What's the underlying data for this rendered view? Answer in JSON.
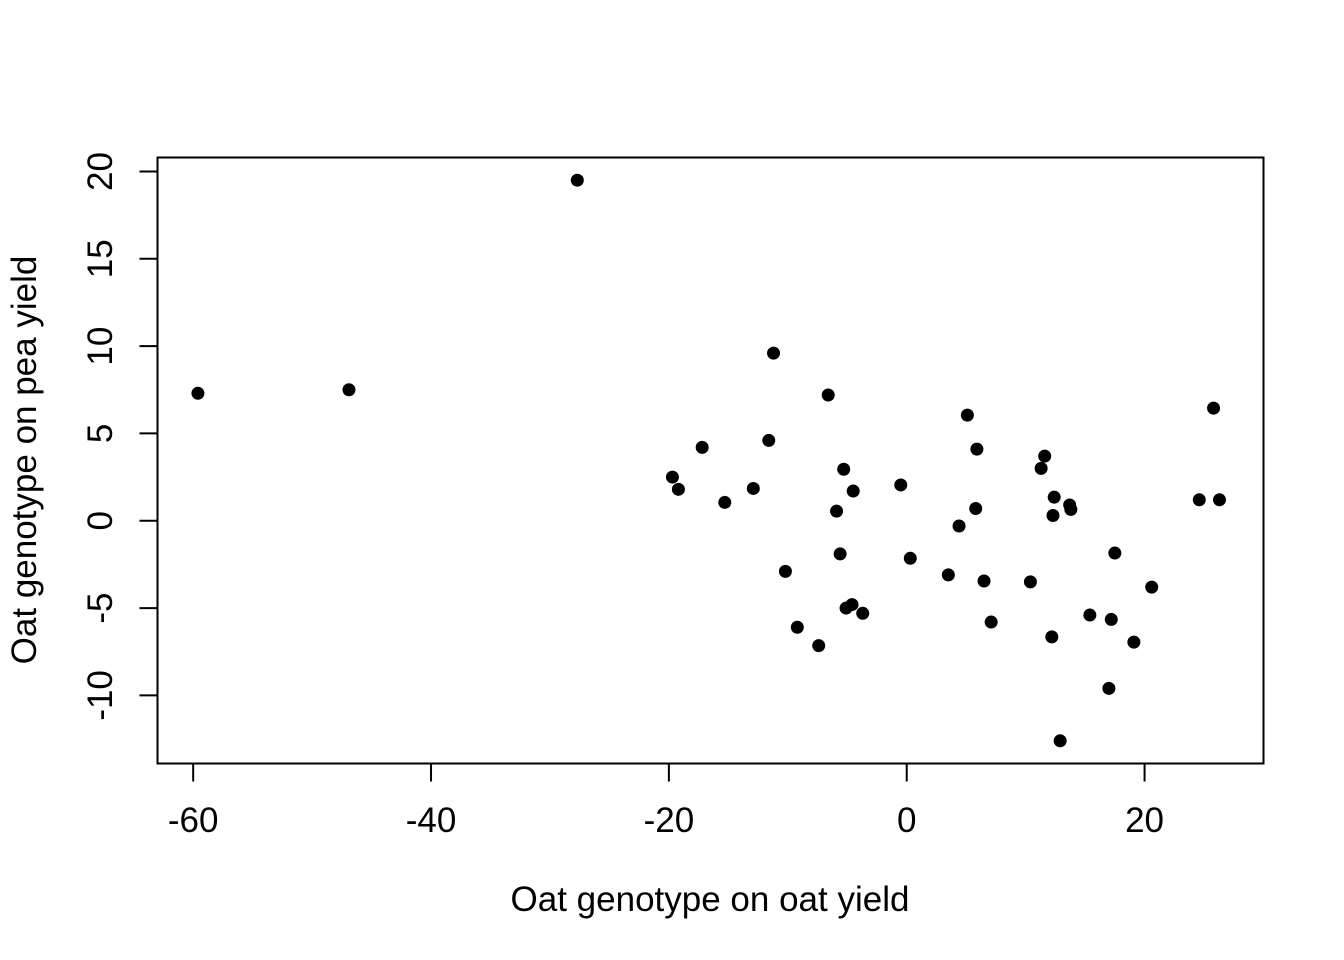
{
  "chart_data": {
    "type": "scatter",
    "title": "",
    "xlabel": "Oat genotype on oat yield",
    "ylabel": "Oat genotype on pea yield",
    "xlim": [
      -63,
      30
    ],
    "ylim": [
      -13.9,
      20.8
    ],
    "x_ticks": [
      -60,
      -40,
      -20,
      0,
      20
    ],
    "y_ticks": [
      -10,
      -5,
      0,
      5,
      10,
      15,
      20
    ],
    "x_tick_labels": [
      "-60",
      "-40",
      "-20",
      "0",
      "20"
    ],
    "y_tick_labels": [
      "-10",
      "-5",
      "0",
      "5",
      "10",
      "15",
      "20"
    ],
    "grid": false,
    "point_color": "#000000",
    "points": [
      {
        "x": -59.6,
        "y": 7.3
      },
      {
        "x": -46.9,
        "y": 7.5
      },
      {
        "x": -27.7,
        "y": 19.5
      },
      {
        "x": -19.7,
        "y": 2.5
      },
      {
        "x": -19.2,
        "y": 1.8
      },
      {
        "x": -17.2,
        "y": 4.2
      },
      {
        "x": -15.3,
        "y": 1.05
      },
      {
        "x": -12.9,
        "y": 1.85
      },
      {
        "x": -11.6,
        "y": 4.6
      },
      {
        "x": -11.2,
        "y": 9.6
      },
      {
        "x": -10.2,
        "y": -2.9
      },
      {
        "x": -9.2,
        "y": -6.1
      },
      {
        "x": -7.4,
        "y": -7.15
      },
      {
        "x": -6.6,
        "y": 7.2
      },
      {
        "x": -5.9,
        "y": 0.55
      },
      {
        "x": -5.6,
        "y": -1.9
      },
      {
        "x": -5.3,
        "y": 2.95
      },
      {
        "x": -5.1,
        "y": -5.0
      },
      {
        "x": -4.6,
        "y": -4.8
      },
      {
        "x": -4.5,
        "y": 1.7
      },
      {
        "x": -3.7,
        "y": -5.3
      },
      {
        "x": -0.5,
        "y": 2.05
      },
      {
        "x": 0.3,
        "y": -2.15
      },
      {
        "x": 3.5,
        "y": -3.1
      },
      {
        "x": 4.4,
        "y": -0.3
      },
      {
        "x": 5.1,
        "y": 6.05
      },
      {
        "x": 5.8,
        "y": 0.7
      },
      {
        "x": 5.9,
        "y": 4.1
      },
      {
        "x": 6.5,
        "y": -3.45
      },
      {
        "x": 7.1,
        "y": -5.8
      },
      {
        "x": 10.4,
        "y": -3.5
      },
      {
        "x": 11.3,
        "y": 3.0
      },
      {
        "x": 11.6,
        "y": 3.7
      },
      {
        "x": 12.2,
        "y": -6.65
      },
      {
        "x": 12.3,
        "y": 0.3
      },
      {
        "x": 12.4,
        "y": 1.35
      },
      {
        "x": 12.9,
        "y": -12.6
      },
      {
        "x": 13.7,
        "y": 0.9
      },
      {
        "x": 13.8,
        "y": 0.65
      },
      {
        "x": 15.4,
        "y": -5.4
      },
      {
        "x": 17.0,
        "y": -9.6
      },
      {
        "x": 17.2,
        "y": -5.65
      },
      {
        "x": 17.5,
        "y": -1.85
      },
      {
        "x": 19.1,
        "y": -6.95
      },
      {
        "x": 20.6,
        "y": -3.8
      },
      {
        "x": 24.6,
        "y": 1.2
      },
      {
        "x": 25.8,
        "y": 6.45
      },
      {
        "x": 26.3,
        "y": 1.2
      }
    ]
  }
}
